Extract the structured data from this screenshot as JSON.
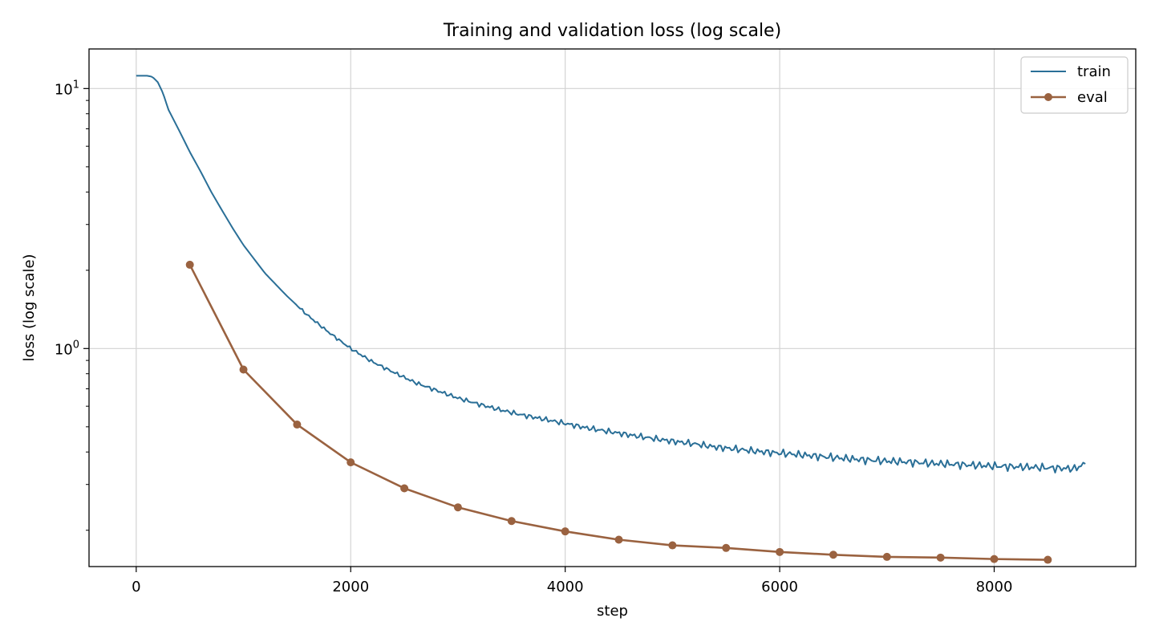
{
  "chart_data": {
    "type": "line",
    "title": "Training and validation loss (log scale)",
    "xlabel": "step",
    "ylabel": "loss (log scale)",
    "yscale": "log",
    "xlim": [
      -440,
      9320
    ],
    "ylim": [
      0.145,
      14.2
    ],
    "xticks": [
      0,
      2000,
      4000,
      6000,
      8000
    ],
    "xtick_labels": [
      "0",
      "2000",
      "4000",
      "6000",
      "8000"
    ],
    "yticks": [
      1,
      10
    ],
    "ytick_labels": [
      {
        "base": "10",
        "exp": "0"
      },
      {
        "base": "10",
        "exp": "1"
      }
    ],
    "grid": true,
    "legend": "top-right",
    "series": [
      {
        "name": "train",
        "color": "#2a6f97",
        "marker": "none",
        "x": [
          0,
          100,
          150,
          200,
          250,
          300,
          400,
          500,
          600,
          700,
          800,
          900,
          1000,
          1200,
          1400,
          1600,
          1800,
          2000,
          2200,
          2400,
          2600,
          2800,
          3000,
          3200,
          3400,
          3600,
          3800,
          4000,
          4200,
          4400,
          4600,
          4800,
          5000,
          5200,
          5400,
          5600,
          5800,
          6000,
          6200,
          6400,
          6600,
          6800,
          7000,
          7200,
          7400,
          7600,
          7800,
          8000,
          8200,
          8400,
          8550,
          8650,
          8750,
          8850
        ],
        "y": [
          11.2,
          11.2,
          11.1,
          10.6,
          9.6,
          8.3,
          6.9,
          5.7,
          4.8,
          4.0,
          3.4,
          2.9,
          2.5,
          1.95,
          1.6,
          1.34,
          1.15,
          1.0,
          0.89,
          0.81,
          0.74,
          0.69,
          0.645,
          0.61,
          0.58,
          0.555,
          0.535,
          0.515,
          0.495,
          0.48,
          0.465,
          0.452,
          0.44,
          0.43,
          0.418,
          0.41,
          0.402,
          0.396,
          0.39,
          0.384,
          0.378,
          0.373,
          0.369,
          0.366,
          0.362,
          0.359,
          0.356,
          0.353,
          0.351,
          0.349,
          0.347,
          0.346,
          0.345,
          0.36
        ]
      },
      {
        "name": "eval",
        "color": "#9a6240",
        "marker": "circle",
        "x": [
          500,
          1000,
          1500,
          2000,
          2500,
          3000,
          3500,
          4000,
          4500,
          5000,
          5500,
          6000,
          6500,
          7000,
          7500,
          8000,
          8500
        ],
        "y": [
          2.1,
          0.83,
          0.51,
          0.365,
          0.29,
          0.245,
          0.217,
          0.198,
          0.184,
          0.175,
          0.171,
          0.165,
          0.161,
          0.158,
          0.157,
          0.155,
          0.154
        ]
      }
    ]
  }
}
